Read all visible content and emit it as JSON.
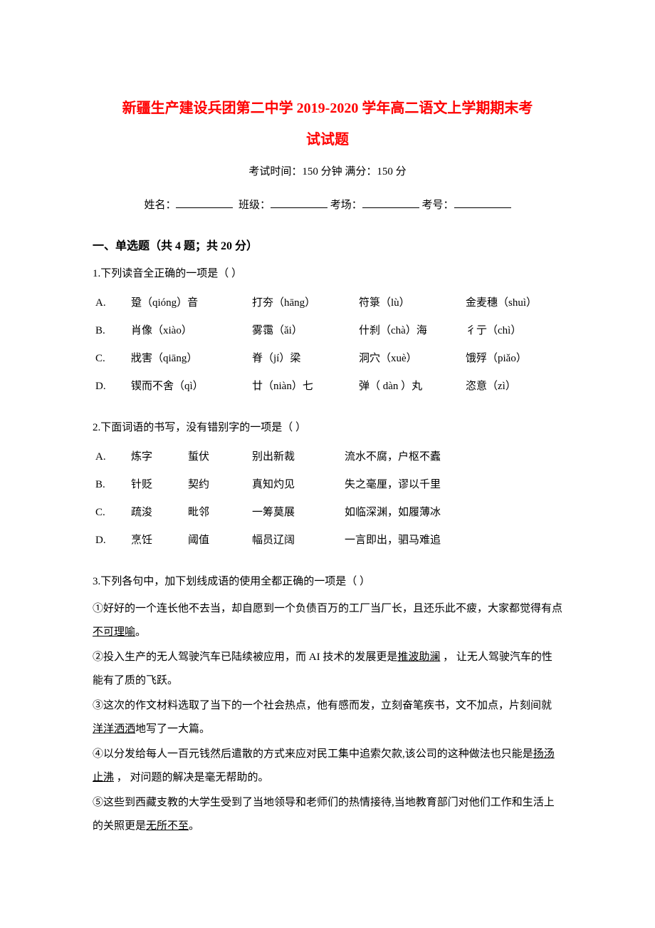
{
  "title_line1": "新疆生产建设兵团第二中学 2019-2020 学年高二语文上学期期末考",
  "title_line2": "试试题",
  "exam_info": "考试时间：150 分钟 满分：150 分",
  "student_info": {
    "name_label": "姓名：",
    "class_label": "班级：",
    "room_label": "考场：",
    "id_label": "考号："
  },
  "section1": {
    "header": "一、单选题（共 4 题；共 20 分）",
    "q1": {
      "stem": "1.下列读音全正确的一项是（       ）",
      "rows": [
        [
          "A.",
          "跫（qióng）音",
          "打夯（hāng）",
          "符箓（lù）",
          "金麦穗（shuì）"
        ],
        [
          "B.",
          "肖像（xiào）",
          "雾霭（ǎi）",
          "什刹（chà）海",
          "彳亍（chì）"
        ],
        [
          "C.",
          "戕害（qiāng）",
          "脊（jí）梁",
          "洞穴（xuè）",
          "饿殍（piǎo）"
        ],
        [
          "D.",
          "锲而不舍（qì）",
          "廿（niàn）七",
          "弹（ dàn ）丸",
          "恣意（zì）"
        ]
      ]
    },
    "q2": {
      "stem": "2.下面词语的书写，没有错别字的一项是（       ）",
      "rows": [
        [
          "A.",
          "炼字",
          "蜇伏",
          "别出新裁",
          "流水不腐，户枢不蠹"
        ],
        [
          "B.",
          "针贬",
          "契约",
          "真知灼见",
          "失之毫厘，谬以千里"
        ],
        [
          "C.",
          "疏浚",
          "毗邻",
          "一筹莫展",
          "如临深渊，如履薄冰"
        ],
        [
          "D.",
          "烹饪",
          "阈值",
          "幅员辽阔",
          "一言即出，驷马难追"
        ]
      ]
    },
    "q3": {
      "stem": "3.下列各句中，加下划线成语的使用全都正确的一项是（       ）",
      "items": [
        {
          "prefix": "①好好的一个连长他不去当，却自愿到一个负债百万的工厂当厂长，且还乐此不疲，大家都觉得有点",
          "u": "不可理喻",
          "suffix": "。"
        },
        {
          "prefix": "②投入生产的无人驾驶汽车已陆续被应用，而 AI 技术的发展更是",
          "u": "推波助澜",
          "suffix": "  ，  让无人驾驶汽车的性能有了质的飞跃。"
        },
        {
          "prefix": "③这次的作文材料选取了当下的一个社会热点，他有感而发，立刻奋笔疾书，文不加点，片刻间就",
          "u": "洋洋洒洒",
          "suffix": "地写了一大篇。"
        },
        {
          "prefix": "④以分发给每人一百元钱然后遣散的方式来应对民工集中追索欠款,该公司的这种做法也只能是",
          "u": "扬汤止沸",
          "suffix": "  ，  对问题的解决是毫无帮助的。"
        },
        {
          "prefix": "⑤这些到西藏支教的大学生受到了当地领导和老师们的热情接待,当地教育部门对他们工作和生活上的关照更是",
          "u": "无所不至",
          "suffix": "。"
        }
      ]
    }
  },
  "colors": {
    "title": "#ff0000",
    "text": "#000000",
    "background": "#ffffff"
  },
  "typography": {
    "title_fontsize": 20,
    "body_fontsize": 15,
    "section_fontsize": 16
  }
}
